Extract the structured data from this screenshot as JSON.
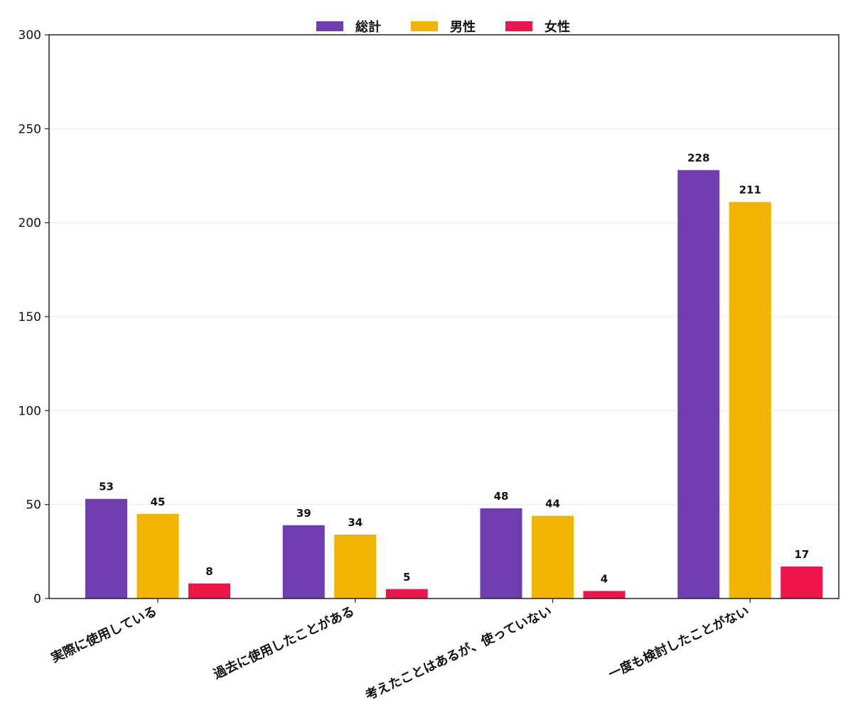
{
  "chart_data": {
    "type": "bar",
    "title": "",
    "xlabel": "",
    "ylabel": "",
    "ylim": [
      0,
      300
    ],
    "yticks": [
      0,
      50,
      100,
      150,
      200,
      250,
      300
    ],
    "grid": "horizontal",
    "legend_position": "top-center",
    "categories": [
      "実際に使用している",
      "過去に使用したことがある",
      "考えたことはあるが、使っていない",
      "一度も検討したことがない"
    ],
    "series": [
      {
        "name": "総計",
        "color": "#6f3db0",
        "values": [
          53,
          39,
          48,
          228
        ]
      },
      {
        "name": "男性",
        "color": "#f3b400",
        "values": [
          45,
          34,
          44,
          211
        ]
      },
      {
        "name": "女性",
        "color": "#ee154b",
        "values": [
          8,
          5,
          4,
          17
        ]
      }
    ]
  }
}
